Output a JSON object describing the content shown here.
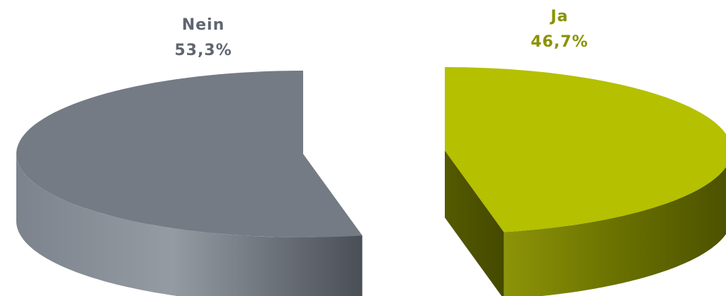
{
  "chart_data": {
    "type": "pie",
    "style": "3d-exploded",
    "categories": [
      "Nein",
      "Ja"
    ],
    "values": [
      53.3,
      46.7
    ],
    "value_labels": [
      "53,3%",
      "46,7%"
    ],
    "slices": [
      {
        "name": "Nein",
        "value": 53.3,
        "value_label": "53,3%",
        "color_top": "#747b85",
        "color_side_light": "#8a9098",
        "color_side_dark": "#4a4f56",
        "label_color": "#5f6670"
      },
      {
        "name": "Ja",
        "value": 46.7,
        "value_label": "46,7%",
        "color_top": "#b4c000",
        "color_side_light": "#a3ad10",
        "color_side_dark": "#4a5000",
        "label_color": "#8a9200"
      }
    ],
    "legend": "none"
  }
}
